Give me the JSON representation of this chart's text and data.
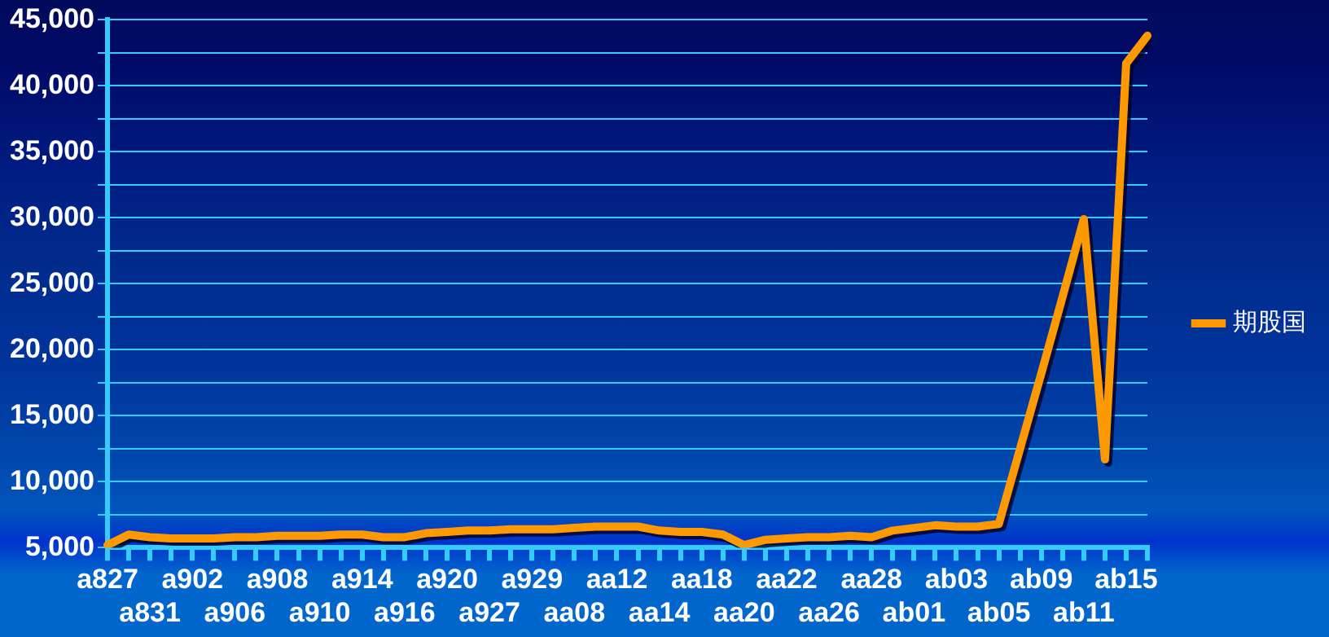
{
  "chart_data": {
    "type": "line",
    "categories": [
      "a827",
      null,
      "a831",
      null,
      "a902",
      null,
      "a906",
      null,
      "a908",
      null,
      "a910",
      null,
      "a914",
      null,
      "a916",
      null,
      "a920",
      null,
      "a927",
      null,
      "a929",
      null,
      "aa08",
      null,
      "aa12",
      null,
      "aa14",
      null,
      "aa18",
      null,
      "aa20",
      null,
      "aa22",
      null,
      "aa26",
      null,
      "aa28",
      null,
      "ab01",
      null,
      "ab03",
      null,
      "ab05",
      null,
      "ab09",
      null,
      "ab11",
      null,
      "ab15",
      null
    ],
    "series": [
      {
        "name": "期股国",
        "color": "#ff9900",
        "values": [
          5200,
          6000,
          5800,
          5700,
          5700,
          5700,
          5800,
          5800,
          5900,
          5900,
          5900,
          6000,
          6000,
          5800,
          5800,
          6100,
          6200,
          6300,
          6300,
          6400,
          6400,
          6400,
          6500,
          6600,
          6600,
          6600,
          6300,
          6200,
          6200,
          6000,
          5200,
          5600,
          5700,
          5800,
          5800,
          5900,
          5800,
          6300,
          6500,
          6700,
          6600,
          6600,
          6800,
          12500,
          18200,
          24000,
          29900,
          11700,
          41700,
          43800
        ]
      }
    ],
    "ylim": [
      5000,
      45000
    ],
    "yticks": [
      {
        "value": 5000,
        "label": "5,000"
      },
      {
        "value": 7500,
        "label": null
      },
      {
        "value": 10000,
        "label": "10,000"
      },
      {
        "value": 12500,
        "label": null
      },
      {
        "value": 15000,
        "label": "15,000"
      },
      {
        "value": 17500,
        "label": null
      },
      {
        "value": 20000,
        "label": "20,000"
      },
      {
        "value": 22500,
        "label": null
      },
      {
        "value": 25000,
        "label": "25,000"
      },
      {
        "value": 27500,
        "label": null
      },
      {
        "value": 30000,
        "label": "30,000"
      },
      {
        "value": 32500,
        "label": null
      },
      {
        "value": 35000,
        "label": "35,000"
      },
      {
        "value": 37500,
        "label": null
      },
      {
        "value": 40000,
        "label": "40,000"
      },
      {
        "value": 42500,
        "label": null
      },
      {
        "value": 45000,
        "label": "45,000"
      }
    ],
    "grid": "y",
    "legend": "right",
    "marker": "none",
    "line_style": "solid"
  }
}
